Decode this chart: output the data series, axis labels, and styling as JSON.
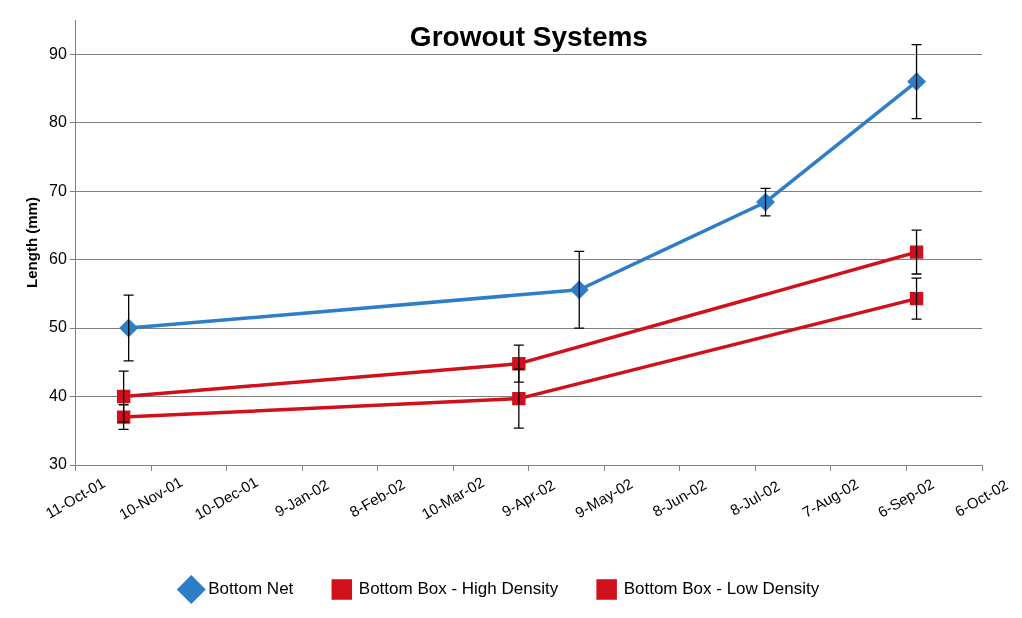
{
  "chart_data": {
    "type": "line",
    "title": "Growout Systems",
    "ylabel": "Length (mm)",
    "xlim": [
      "2001-10-11",
      "2002-10-06"
    ],
    "xticks": [
      {
        "value": "2001-10-11",
        "label": "11-Oct-01"
      },
      {
        "value": "2001-11-10",
        "label": "10-Nov-01"
      },
      {
        "value": "2001-12-10",
        "label": "10-Dec-01"
      },
      {
        "value": "2002-01-09",
        "label": "9-Jan-02"
      },
      {
        "value": "2002-02-08",
        "label": "8-Feb-02"
      },
      {
        "value": "2002-03-10",
        "label": "10-Mar-02"
      },
      {
        "value": "2002-04-09",
        "label": "9-Apr-02"
      },
      {
        "value": "2002-05-09",
        "label": "9-May-02"
      },
      {
        "value": "2002-06-08",
        "label": "8-Jun-02"
      },
      {
        "value": "2002-07-08",
        "label": "8-Jul-02"
      },
      {
        "value": "2002-08-07",
        "label": "7-Aug-02"
      },
      {
        "value": "2002-09-06",
        "label": "6-Sep-02"
      },
      {
        "value": "2002-10-06",
        "label": "6-Oct-02"
      }
    ],
    "ylim": [
      30,
      95
    ],
    "yticks": [
      30,
      40,
      50,
      60,
      70,
      80,
      90
    ],
    "grid": "y",
    "legend": "bottom",
    "series": [
      {
        "name": "Bottom Net",
        "color": "#2e7dc7",
        "marker": "diamond",
        "x": [
          "2001-11-01",
          "2002-04-29",
          "2002-07-12",
          "2002-09-10"
        ],
        "values": [
          50,
          55.6,
          68.4,
          86
        ],
        "errors": [
          4.8,
          5.6,
          2,
          5.4
        ]
      },
      {
        "name": "Bottom Box - High Density",
        "color": "#d0101a",
        "marker": "square",
        "x": [
          "2001-10-30",
          "2002-04-05",
          "2002-09-10"
        ],
        "values": [
          37,
          39.7,
          54.3
        ],
        "errors": [
          1.8,
          4.3,
          3
        ]
      },
      {
        "name": "Bottom Box - Low Density",
        "color": "#d0101a",
        "marker": "square",
        "x": [
          "2001-10-30",
          "2002-04-05",
          "2002-09-10"
        ],
        "values": [
          40,
          44.8,
          61.1
        ],
        "errors": [
          3.7,
          2.7,
          3.2
        ]
      }
    ]
  }
}
